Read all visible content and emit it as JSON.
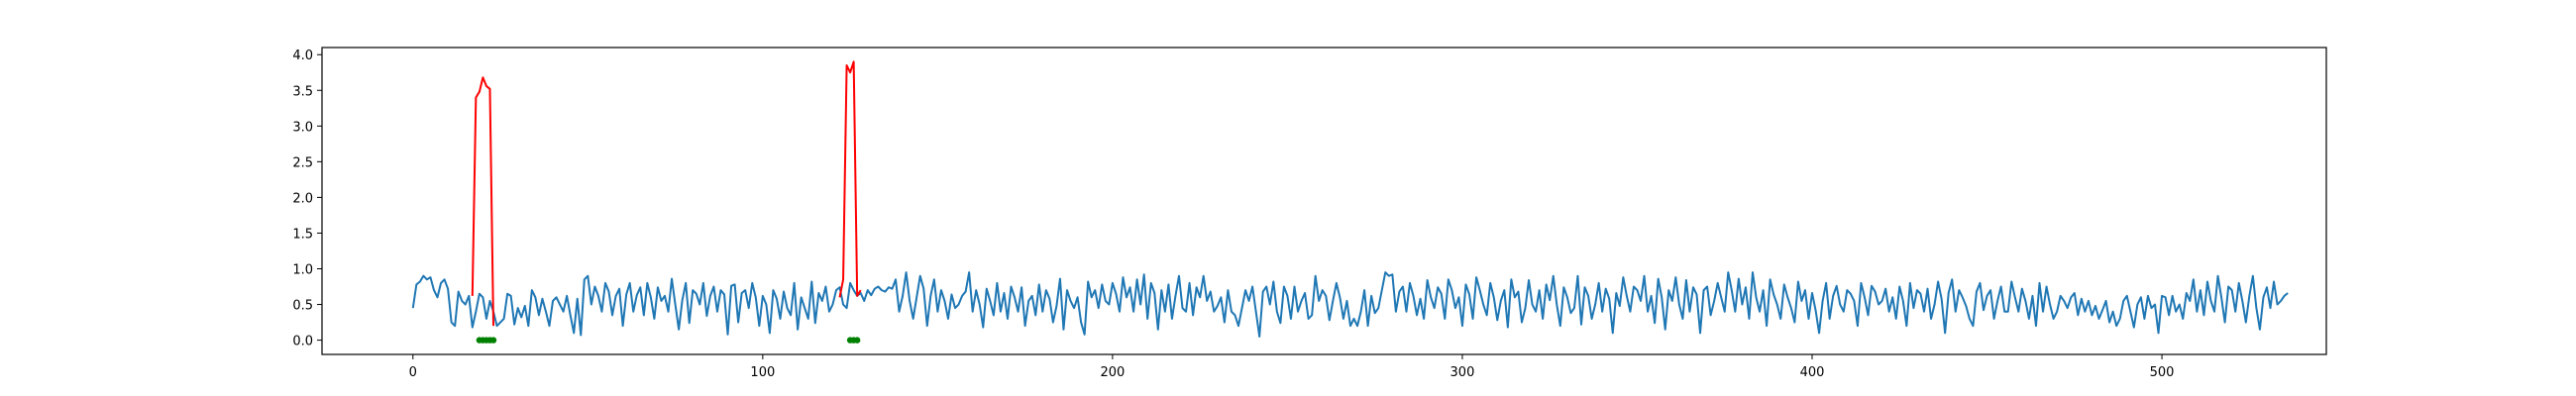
{
  "chart_data": {
    "type": "line",
    "title": "",
    "xlabel": "",
    "ylabel": "",
    "xlim": [
      -26,
      547
    ],
    "ylim": [
      -0.2,
      4.1
    ],
    "grid": false,
    "x_ticks": [
      0,
      100,
      200,
      300,
      400,
      500
    ],
    "x_tick_labels": [
      "0",
      "100",
      "200",
      "300",
      "400",
      "500"
    ],
    "y_ticks": [
      0.0,
      0.5,
      1.0,
      1.5,
      2.0,
      2.5,
      3.0,
      3.5,
      4.0
    ],
    "y_tick_labels": [
      "0.0",
      "0.5",
      "1.0",
      "1.5",
      "2.0",
      "2.5",
      "3.0",
      "3.5",
      "4.0"
    ],
    "colors": {
      "series": "#1f77b4",
      "anomaly": "#ff0000",
      "markers": "#008000"
    },
    "series": [
      {
        "style": "line",
        "color": "#1f77b4",
        "values": [
          0.45,
          0.78,
          0.82,
          0.9,
          0.85,
          0.88,
          0.7,
          0.6,
          0.8,
          0.85,
          0.72,
          0.25,
          0.2,
          0.68,
          0.55,
          0.5,
          0.62,
          0.18,
          0.4,
          0.65,
          0.6,
          0.3,
          0.55,
          0.4,
          0.2,
          0.25,
          0.3,
          0.65,
          0.62,
          0.22,
          0.45,
          0.32,
          0.48,
          0.2,
          0.7,
          0.6,
          0.35,
          0.58,
          0.4,
          0.2,
          0.55,
          0.6,
          0.5,
          0.4,
          0.62,
          0.35,
          0.1,
          0.58,
          0.07,
          0.85,
          0.9,
          0.5,
          0.75,
          0.62,
          0.4,
          0.8,
          0.68,
          0.35,
          0.62,
          0.72,
          0.2,
          0.64,
          0.8,
          0.4,
          0.63,
          0.74,
          0.35,
          0.8,
          0.6,
          0.3,
          0.74,
          0.55,
          0.62,
          0.4,
          0.86,
          0.5,
          0.15,
          0.56,
          0.8,
          0.24,
          0.7,
          0.65,
          0.5,
          0.8,
          0.34,
          0.62,
          0.75,
          0.4,
          0.7,
          0.64,
          0.08,
          0.76,
          0.78,
          0.25,
          0.66,
          0.7,
          0.45,
          0.8,
          0.6,
          0.2,
          0.62,
          0.5,
          0.1,
          0.7,
          0.58,
          0.3,
          0.68,
          0.45,
          0.35,
          0.8,
          0.15,
          0.6,
          0.45,
          0.3,
          0.82,
          0.24,
          0.66,
          0.55,
          0.75,
          0.4,
          0.5,
          0.7,
          0.74,
          0.5,
          0.45,
          0.8,
          0.7,
          0.62,
          0.66,
          0.55,
          0.7,
          0.63,
          0.72,
          0.75,
          0.7,
          0.68,
          0.74,
          0.72,
          0.85,
          0.4,
          0.62,
          0.95,
          0.55,
          0.3,
          0.6,
          0.9,
          0.72,
          0.2,
          0.62,
          0.85,
          0.4,
          0.7,
          0.55,
          0.3,
          0.64,
          0.45,
          0.5,
          0.62,
          0.68,
          0.95,
          0.4,
          0.7,
          0.5,
          0.18,
          0.72,
          0.55,
          0.35,
          0.8,
          0.4,
          0.66,
          0.3,
          0.75,
          0.6,
          0.4,
          0.74,
          0.2,
          0.55,
          0.62,
          0.35,
          0.78,
          0.4,
          0.7,
          0.58,
          0.25,
          0.48,
          0.86,
          0.15,
          0.7,
          0.55,
          0.45,
          0.6,
          0.25,
          0.08,
          0.82,
          0.6,
          0.7,
          0.45,
          0.78,
          0.55,
          0.5,
          0.8,
          0.65,
          0.4,
          0.88,
          0.6,
          0.74,
          0.4,
          0.85,
          0.5,
          0.92,
          0.3,
          0.8,
          0.66,
          0.15,
          0.7,
          0.4,
          0.78,
          0.3,
          0.62,
          0.9,
          0.45,
          0.4,
          0.8,
          0.35,
          0.74,
          0.6,
          0.9,
          0.55,
          0.68,
          0.4,
          0.48,
          0.6,
          0.25,
          0.7,
          0.4,
          0.35,
          0.2,
          0.45,
          0.7,
          0.55,
          0.75,
          0.4,
          0.05,
          0.68,
          0.75,
          0.5,
          0.82,
          0.4,
          0.24,
          0.75,
          0.62,
          0.3,
          0.75,
          0.4,
          0.55,
          0.66,
          0.3,
          0.35,
          0.9,
          0.55,
          0.7,
          0.62,
          0.28,
          0.55,
          0.8,
          0.6,
          0.3,
          0.55,
          0.2,
          0.3,
          0.2,
          0.4,
          0.7,
          0.2,
          0.62,
          0.38,
          0.45,
          0.7,
          0.95,
          0.9,
          0.92,
          0.4,
          0.68,
          0.75,
          0.4,
          0.8,
          0.62,
          0.35,
          0.58,
          0.3,
          0.84,
          0.6,
          0.45,
          0.74,
          0.65,
          0.3,
          0.85,
          0.7,
          0.45,
          0.6,
          0.2,
          0.78,
          0.64,
          0.3,
          0.88,
          0.7,
          0.5,
          0.35,
          0.8,
          0.6,
          0.28,
          0.55,
          0.7,
          0.18,
          0.85,
          0.6,
          0.68,
          0.25,
          0.45,
          0.84,
          0.5,
          0.4,
          0.7,
          0.3,
          0.78,
          0.56,
          0.9,
          0.5,
          0.2,
          0.74,
          0.6,
          0.38,
          0.45,
          0.9,
          0.22,
          0.74,
          0.62,
          0.3,
          0.5,
          0.8,
          0.4,
          0.72,
          0.58,
          0.1,
          0.66,
          0.48,
          0.88,
          0.62,
          0.4,
          0.75,
          0.7,
          0.55,
          0.9,
          0.4,
          0.62,
          0.24,
          0.86,
          0.6,
          0.15,
          0.7,
          0.55,
          0.88,
          0.5,
          0.3,
          0.84,
          0.4,
          0.74,
          0.64,
          0.1,
          0.7,
          0.75,
          0.35,
          0.55,
          0.8,
          0.6,
          0.4,
          0.95,
          0.7,
          0.4,
          0.86,
          0.5,
          0.74,
          0.3,
          0.95,
          0.6,
          0.4,
          0.7,
          0.2,
          0.85,
          0.64,
          0.5,
          0.3,
          0.78,
          0.6,
          0.45,
          0.25,
          0.82,
          0.55,
          0.7,
          0.3,
          0.66,
          0.42,
          0.1,
          0.55,
          0.8,
          0.3,
          0.62,
          0.76,
          0.5,
          0.4,
          0.7,
          0.65,
          0.55,
          0.2,
          0.8,
          0.6,
          0.35,
          0.76,
          0.68,
          0.5,
          0.55,
          0.72,
          0.4,
          0.6,
          0.3,
          0.75,
          0.55,
          0.2,
          0.8,
          0.45,
          0.7,
          0.65,
          0.4,
          0.72,
          0.3,
          0.5,
          0.82,
          0.58,
          0.1,
          0.66,
          0.85,
          0.4,
          0.7,
          0.6,
          0.48,
          0.3,
          0.2,
          0.68,
          0.8,
          0.42,
          0.62,
          0.7,
          0.3,
          0.55,
          0.75,
          0.4,
          0.4,
          0.82,
          0.6,
          0.4,
          0.72,
          0.55,
          0.3,
          0.62,
          0.2,
          0.8,
          0.4,
          0.75,
          0.5,
          0.3,
          0.4,
          0.62,
          0.55,
          0.45,
          0.6,
          0.66,
          0.35,
          0.58,
          0.4,
          0.55,
          0.35,
          0.48,
          0.3,
          0.42,
          0.55,
          0.25,
          0.4,
          0.2,
          0.3,
          0.55,
          0.62,
          0.4,
          0.18,
          0.5,
          0.6,
          0.3,
          0.62,
          0.45,
          0.5,
          0.1,
          0.62,
          0.6,
          0.35,
          0.62,
          0.4,
          0.5,
          0.3,
          0.66,
          0.55,
          0.85,
          0.4,
          0.7,
          0.35,
          0.82,
          0.55,
          0.4,
          0.9,
          0.6,
          0.25,
          0.75,
          0.7,
          0.4,
          0.8,
          0.55,
          0.25,
          0.62,
          0.9,
          0.45,
          0.15,
          0.6,
          0.74,
          0.45,
          0.82,
          0.5,
          0.55,
          0.62,
          0.66
        ]
      },
      {
        "style": "line",
        "color": "#ff0000",
        "x": [
          17,
          18,
          19,
          20,
          21,
          22,
          23
        ],
        "values": [
          0.62,
          3.4,
          3.48,
          3.68,
          3.56,
          3.52,
          0.2
        ]
      },
      {
        "style": "line",
        "color": "#ff0000",
        "x": [
          122,
          123,
          124,
          125,
          126,
          127,
          128
        ],
        "values": [
          0.6,
          0.85,
          3.85,
          3.75,
          3.9,
          0.62,
          0.7
        ]
      },
      {
        "style": "markers",
        "color": "#008000",
        "x": [
          19,
          20,
          21,
          22,
          23,
          125,
          126,
          127
        ],
        "values": [
          0,
          0,
          0,
          0,
          0,
          0,
          0,
          0
        ]
      }
    ]
  }
}
